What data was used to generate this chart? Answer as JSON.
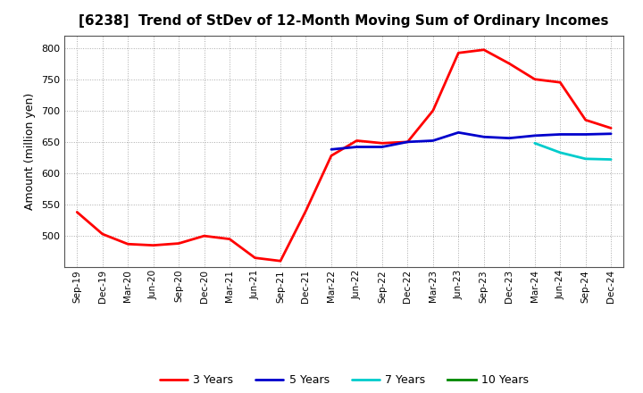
{
  "title": "[6238]  Trend of StDev of 12-Month Moving Sum of Ordinary Incomes",
  "ylabel": "Amount (million yen)",
  "ylim": [
    450,
    820
  ],
  "yticks": [
    500,
    550,
    600,
    650,
    700,
    750,
    800
  ],
  "background_color": "#ffffff",
  "grid_color": "#aaaaaa",
  "series_3yr": [
    538,
    503,
    487,
    485,
    488,
    500,
    495,
    465,
    460,
    540,
    628,
    652,
    648,
    650,
    700,
    792,
    797,
    775,
    750,
    745,
    685,
    672
  ],
  "series_5yr": [
    null,
    null,
    null,
    null,
    null,
    null,
    null,
    null,
    null,
    null,
    638,
    642,
    642,
    650,
    652,
    665,
    658,
    656,
    660,
    662,
    662,
    663
  ],
  "series_7yr": [
    null,
    null,
    null,
    null,
    null,
    null,
    null,
    null,
    null,
    null,
    null,
    null,
    null,
    null,
    null,
    null,
    null,
    null,
    648,
    633,
    623,
    622
  ],
  "series_10yr": [
    null,
    null,
    null,
    null,
    null,
    null,
    null,
    null,
    null,
    null,
    null,
    null,
    null,
    null,
    null,
    null,
    null,
    null,
    null,
    null,
    null,
    null
  ],
  "colors": {
    "3yr": "#ff0000",
    "5yr": "#0000cc",
    "7yr": "#00cccc",
    "10yr": "#008800"
  },
  "legend_labels": [
    "3 Years",
    "5 Years",
    "7 Years",
    "10 Years"
  ],
  "xtick_labels": [
    "Sep-19",
    "Dec-19",
    "Mar-20",
    "Jun-20",
    "Sep-20",
    "Dec-20",
    "Mar-21",
    "Jun-21",
    "Sep-21",
    "Dec-21",
    "Mar-22",
    "Jun-22",
    "Sep-22",
    "Dec-22",
    "Mar-23",
    "Jun-23",
    "Sep-23",
    "Dec-23",
    "Mar-24",
    "Jun-24",
    "Sep-24",
    "Dec-24"
  ]
}
